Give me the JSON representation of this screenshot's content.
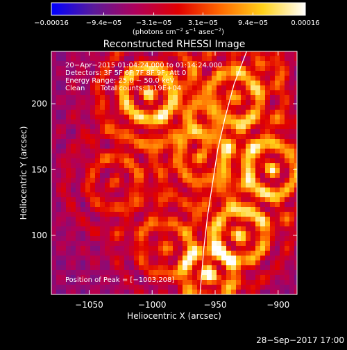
{
  "chart_data": {
    "type": "heatmap",
    "title": "Reconstructed RHESSI Image",
    "xlabel": "Heliocentric X (arcsec)",
    "ylabel": "Heliocentric Y (arcsec)",
    "xlim": [
      -1080,
      -885
    ],
    "ylim": [
      55,
      240
    ],
    "xticks": [
      -1050,
      -1000,
      -950,
      -900
    ],
    "xtick_labels": [
      "−1050",
      "−1000",
      "−950",
      "−900"
    ],
    "yticks": [
      100,
      150,
      200
    ],
    "ytick_labels": [
      "100",
      "150",
      "200"
    ],
    "colorbar": {
      "min": -0.00016,
      "max": 0.00016,
      "ticks": [
        -0.00016,
        -9.4e-05,
        -3.1e-05,
        3.1e-05,
        9.4e-05,
        0.00016
      ],
      "tick_labels": [
        "−0.00016",
        "−9.4e−05",
        "−3.1e−05",
        "3.1e−05",
        "9.4e−05",
        "0.00016"
      ],
      "unit_main": "(photons cm",
      "unit_sup1": "−2",
      "unit_mid": " s",
      "unit_sup2": "−1",
      "unit_mid2": " asec",
      "unit_sup3": "−2",
      "unit_end": ")",
      "colors": [
        "#0000ff",
        "#5a1a9a",
        "#b0005a",
        "#e00000",
        "#ff6a00",
        "#ffd21a",
        "#ffffff"
      ]
    },
    "annotations": {
      "time": "20−Apr−2015 01:04:24.000 to 01:14:24.000",
      "detectors": "Detectors: 3F 5F 6F 7F 8F 9F, Att 0",
      "energy": "Energy Range: 25.0 − 50.0 keV",
      "method": "Clean",
      "counts": "Total counts: 1.19E+04",
      "peak": "Position of Peak = [−1003,208]"
    },
    "limb_curve": [
      [
        -925,
        240
      ],
      [
        -935,
        215
      ],
      [
        -942,
        190
      ],
      [
        -948,
        165
      ],
      [
        -952,
        140
      ],
      [
        -956,
        115
      ],
      [
        -959,
        90
      ],
      [
        -962,
        55
      ]
    ],
    "grid": false
  },
  "footer": {
    "date": "28−Sep−2017 17:00"
  }
}
